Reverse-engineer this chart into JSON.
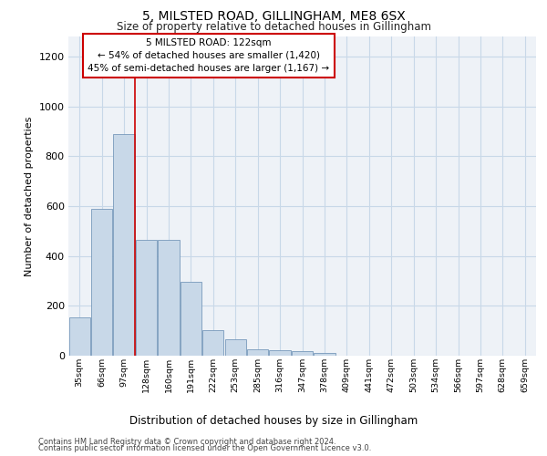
{
  "title": "5, MILSTED ROAD, GILLINGHAM, ME8 6SX",
  "subtitle": "Size of property relative to detached houses in Gillingham",
  "xlabel": "Distribution of detached houses by size in Gillingham",
  "ylabel": "Number of detached properties",
  "categories": [
    "35sqm",
    "66sqm",
    "97sqm",
    "128sqm",
    "160sqm",
    "191sqm",
    "222sqm",
    "253sqm",
    "285sqm",
    "316sqm",
    "347sqm",
    "378sqm",
    "409sqm",
    "441sqm",
    "472sqm",
    "503sqm",
    "534sqm",
    "566sqm",
    "597sqm",
    "628sqm",
    "659sqm"
  ],
  "values": [
    155,
    590,
    890,
    465,
    465,
    295,
    103,
    65,
    25,
    22,
    20,
    10,
    0,
    0,
    0,
    0,
    0,
    0,
    0,
    0,
    0
  ],
  "bar_color": "#c8d8e8",
  "bar_edge_color": "#7799bb",
  "vline_color": "#cc0000",
  "vline_x_index": 3,
  "annotation_text": "5 MILSTED ROAD: 122sqm\n← 54% of detached houses are smaller (1,420)\n45% of semi-detached houses are larger (1,167) →",
  "annotation_box_color": "#ffffff",
  "annotation_box_edge_color": "#cc0000",
  "ylim": [
    0,
    1280
  ],
  "yticks": [
    0,
    200,
    400,
    600,
    800,
    1000,
    1200
  ],
  "grid_color": "#c8d8e8",
  "background_color": "#eef2f7",
  "footer_line1": "Contains HM Land Registry data © Crown copyright and database right 2024.",
  "footer_line2": "Contains public sector information licensed under the Open Government Licence v3.0."
}
